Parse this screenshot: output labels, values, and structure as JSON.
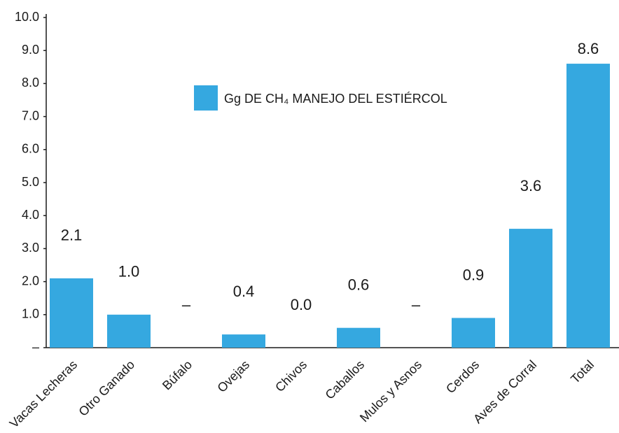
{
  "chart_data": {
    "type": "bar",
    "categories": [
      "Vacas Lecheras",
      "Otro Ganado",
      "Búfalo",
      "Ovejas",
      "Chivos",
      "Caballos",
      "Mulos y Asnos",
      "Cerdos",
      "Aves de Corral",
      "Total"
    ],
    "series": [
      {
        "name": "Gg DE CH₄ MANEJO DEL ESTIÉRCOL",
        "color": "#35a8e0",
        "values": [
          2.1,
          1.0,
          null,
          0.4,
          0.0,
          0.6,
          null,
          0.9,
          3.6,
          8.6
        ],
        "value_labels": [
          "2.1",
          "1.0",
          "–",
          "0.4",
          "0.0",
          "0.6",
          "–",
          "0.9",
          "3.6",
          "8.6"
        ]
      }
    ],
    "ylim": [
      0,
      10
    ],
    "yticks": [
      {
        "value": 0,
        "label": "–"
      },
      {
        "value": 1,
        "label": "1.0"
      },
      {
        "value": 2,
        "label": "2.0"
      },
      {
        "value": 3,
        "label": "3.0"
      },
      {
        "value": 4,
        "label": "4.0"
      },
      {
        "value": 5,
        "label": "5.0"
      },
      {
        "value": 6,
        "label": "6.0"
      },
      {
        "value": 7,
        "label": "7.0"
      },
      {
        "value": 8,
        "label": "8.0"
      },
      {
        "value": 9,
        "label": "9.0"
      },
      {
        "value": 10,
        "label": "10.0"
      }
    ],
    "legend": "top-center"
  }
}
